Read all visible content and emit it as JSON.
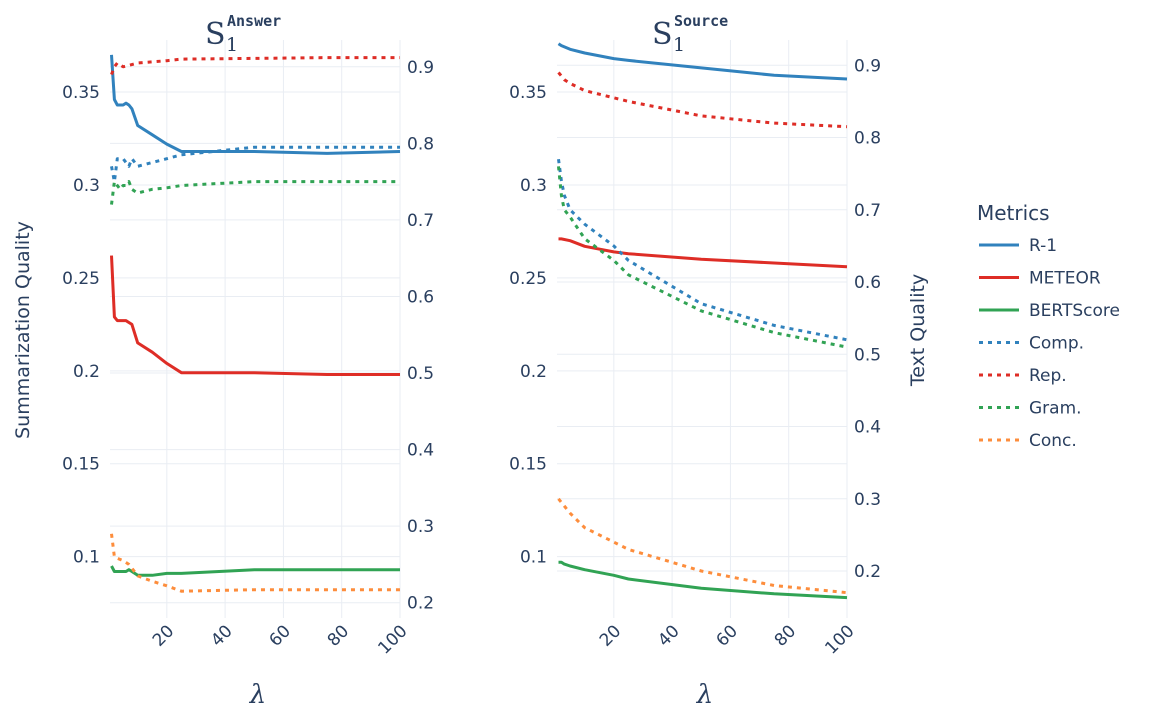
{
  "chart_data": {
    "type": "line",
    "legend": {
      "title": "Metrics",
      "placement": "right"
    },
    "x_label": "λ",
    "y_label_left": "Summarization Quality",
    "y_label_right": "Text Quality",
    "x_ticks": [
      20,
      40,
      60,
      80,
      100
    ],
    "panels": [
      {
        "title": "S",
        "title_sup": "Answer",
        "title_sub": "1",
        "xlim": [
          0.5,
          100
        ],
        "ylim_left": [
          0.067,
          0.378
        ],
        "yticks_left": [
          0.1,
          0.15,
          0.2,
          0.25,
          0.3,
          0.35
        ],
        "ylim_right": [
          0.18,
          0.935
        ],
        "yticks_right": [
          0.2,
          0.3,
          0.4,
          0.5,
          0.6,
          0.7,
          0.8,
          0.9
        ],
        "series": [
          {
            "name": "R-1",
            "axis": "left",
            "style": "solid",
            "color": "#3182bd",
            "x": [
              1,
              2,
              3,
              5,
              6,
              7,
              8,
              10,
              15,
              20,
              25,
              50,
              75,
              100
            ],
            "y": [
              0.37,
              0.346,
              0.343,
              0.343,
              0.344,
              0.343,
              0.341,
              0.332,
              0.327,
              0.322,
              0.318,
              0.318,
              0.317,
              0.318
            ]
          },
          {
            "name": "METEOR",
            "axis": "left",
            "style": "solid",
            "color": "#de2d26",
            "x": [
              1,
              2,
              3,
              5,
              6,
              7,
              8,
              10,
              15,
              20,
              25,
              50,
              75,
              100
            ],
            "y": [
              0.262,
              0.229,
              0.227,
              0.227,
              0.227,
              0.226,
              0.225,
              0.215,
              0.21,
              0.204,
              0.199,
              0.199,
              0.198,
              0.198
            ]
          },
          {
            "name": "BERTScore",
            "axis": "left",
            "style": "solid",
            "color": "#31a354",
            "x": [
              1,
              2,
              3,
              5,
              6,
              7,
              8,
              10,
              15,
              20,
              25,
              50,
              75,
              100
            ],
            "y": [
              0.095,
              0.092,
              0.092,
              0.092,
              0.092,
              0.093,
              0.092,
              0.09,
              0.09,
              0.091,
              0.091,
              0.093,
              0.093,
              0.093
            ]
          },
          {
            "name": "Comp.",
            "axis": "right",
            "style": "dotted",
            "color": "#3182bd",
            "x": [
              1,
              2,
              3,
              4,
              5,
              6,
              7,
              8,
              10,
              15,
              20,
              25,
              50,
              75,
              100
            ],
            "y": [
              0.77,
              0.75,
              0.78,
              0.78,
              0.78,
              0.775,
              0.77,
              0.78,
              0.77,
              0.775,
              0.78,
              0.785,
              0.795,
              0.795,
              0.795
            ]
          },
          {
            "name": "Rep.",
            "axis": "right",
            "style": "dotted",
            "color": "#de2d26",
            "x": [
              1,
              2,
              3,
              5,
              10,
              20,
              25,
              50,
              75,
              100
            ],
            "y": [
              0.89,
              0.9,
              0.905,
              0.9,
              0.905,
              0.908,
              0.91,
              0.911,
              0.912,
              0.912
            ]
          },
          {
            "name": "Gram.",
            "axis": "right",
            "style": "dotted",
            "color": "#31a354",
            "x": [
              1,
              2,
              3,
              4,
              5,
              6,
              7,
              8,
              10,
              15,
              20,
              25,
              50,
              75,
              100
            ],
            "y": [
              0.72,
              0.75,
              0.745,
              0.74,
              0.745,
              0.745,
              0.75,
              0.74,
              0.735,
              0.74,
              0.742,
              0.745,
              0.75,
              0.75,
              0.75
            ]
          },
          {
            "name": "Conc.",
            "axis": "right",
            "style": "dotted",
            "color": "#fd8d3c",
            "x": [
              1,
              2,
              3,
              5,
              7,
              8,
              10,
              15,
              20,
              25,
              50,
              75,
              100
            ],
            "y": [
              0.29,
              0.26,
              0.258,
              0.255,
              0.25,
              0.245,
              0.235,
              0.228,
              0.222,
              0.215,
              0.217,
              0.217,
              0.217
            ]
          }
        ]
      },
      {
        "title": "S",
        "title_sup": "Source",
        "title_sub": "1",
        "xlim": [
          0.5,
          100
        ],
        "ylim_left": [
          0.067,
          0.378
        ],
        "yticks_left": [
          0.1,
          0.15,
          0.2,
          0.25,
          0.3,
          0.35
        ],
        "ylim_right": [
          0.135,
          0.935
        ],
        "yticks_right": [
          0.2,
          0.3,
          0.4,
          0.5,
          0.6,
          0.7,
          0.8,
          0.9
        ],
        "series": [
          {
            "name": "R-1",
            "axis": "left",
            "style": "solid",
            "color": "#3182bd",
            "x": [
              1,
              2,
              5,
              10,
              20,
              25,
              50,
              75,
              100
            ],
            "y": [
              0.376,
              0.375,
              0.373,
              0.371,
              0.368,
              0.367,
              0.363,
              0.359,
              0.357
            ]
          },
          {
            "name": "METEOR",
            "axis": "left",
            "style": "solid",
            "color": "#de2d26",
            "x": [
              1,
              2,
              5,
              10,
              20,
              25,
              50,
              75,
              100
            ],
            "y": [
              0.271,
              0.271,
              0.27,
              0.267,
              0.264,
              0.263,
              0.26,
              0.258,
              0.256
            ]
          },
          {
            "name": "BERTScore",
            "axis": "left",
            "style": "solid",
            "color": "#31a354",
            "x": [
              1,
              2,
              3,
              5,
              10,
              20,
              25,
              50,
              75,
              100
            ],
            "y": [
              0.097,
              0.097,
              0.096,
              0.095,
              0.093,
              0.09,
              0.088,
              0.083,
              0.08,
              0.078
            ]
          },
          {
            "name": "Comp.",
            "axis": "right",
            "style": "dotted",
            "color": "#3182bd",
            "x": [
              1,
              2,
              3,
              5,
              10,
              20,
              25,
              50,
              75,
              100
            ],
            "y": [
              0.77,
              0.74,
              0.72,
              0.7,
              0.68,
              0.65,
              0.63,
              0.57,
              0.54,
              0.52
            ]
          },
          {
            "name": "Rep.",
            "axis": "right",
            "style": "dotted",
            "color": "#de2d26",
            "x": [
              1,
              2,
              3,
              5,
              10,
              20,
              25,
              50,
              75,
              100
            ],
            "y": [
              0.89,
              0.885,
              0.88,
              0.875,
              0.865,
              0.855,
              0.85,
              0.83,
              0.82,
              0.815
            ]
          },
          {
            "name": "Gram.",
            "axis": "right",
            "style": "dotted",
            "color": "#31a354",
            "x": [
              1,
              2,
              3,
              5,
              10,
              20,
              25,
              50,
              75,
              100
            ],
            "y": [
              0.76,
              0.72,
              0.7,
              0.69,
              0.66,
              0.63,
              0.61,
              0.56,
              0.53,
              0.51
            ]
          },
          {
            "name": "Conc.",
            "axis": "right",
            "style": "dotted",
            "color": "#fd8d3c",
            "x": [
              1,
              2,
              3,
              5,
              10,
              20,
              25,
              50,
              75,
              100
            ],
            "y": [
              0.3,
              0.295,
              0.29,
              0.28,
              0.26,
              0.24,
              0.23,
              0.2,
              0.18,
              0.17
            ]
          }
        ]
      }
    ]
  }
}
